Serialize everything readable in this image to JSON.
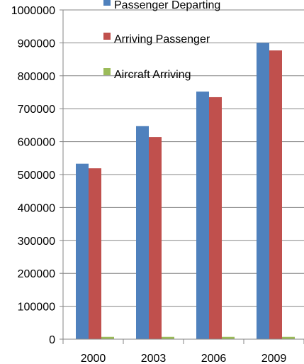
{
  "chart_data": {
    "type": "bar",
    "categories": [
      "2000",
      "2003",
      "2006",
      "2009"
    ],
    "series": [
      {
        "name": "Passenger Departing",
        "color": "#4F81BD",
        "values": [
          533000,
          647000,
          752000,
          900000
        ]
      },
      {
        "name": "Arriving Passenger",
        "color": "#C0504D",
        "values": [
          519000,
          614000,
          735000,
          877000
        ]
      },
      {
        "name": "Aircraft Arriving",
        "color": "#9BBB59",
        "values": [
          7000,
          7000,
          7000,
          7000
        ]
      }
    ],
    "ylim": [
      0,
      1000000
    ],
    "yticks": [
      "0",
      "100000",
      "200000",
      "300000",
      "400000",
      "500000",
      "600000",
      "700000",
      "800000",
      "900000",
      "1000000"
    ],
    "grid": true,
    "legend_position": "inside-top"
  }
}
